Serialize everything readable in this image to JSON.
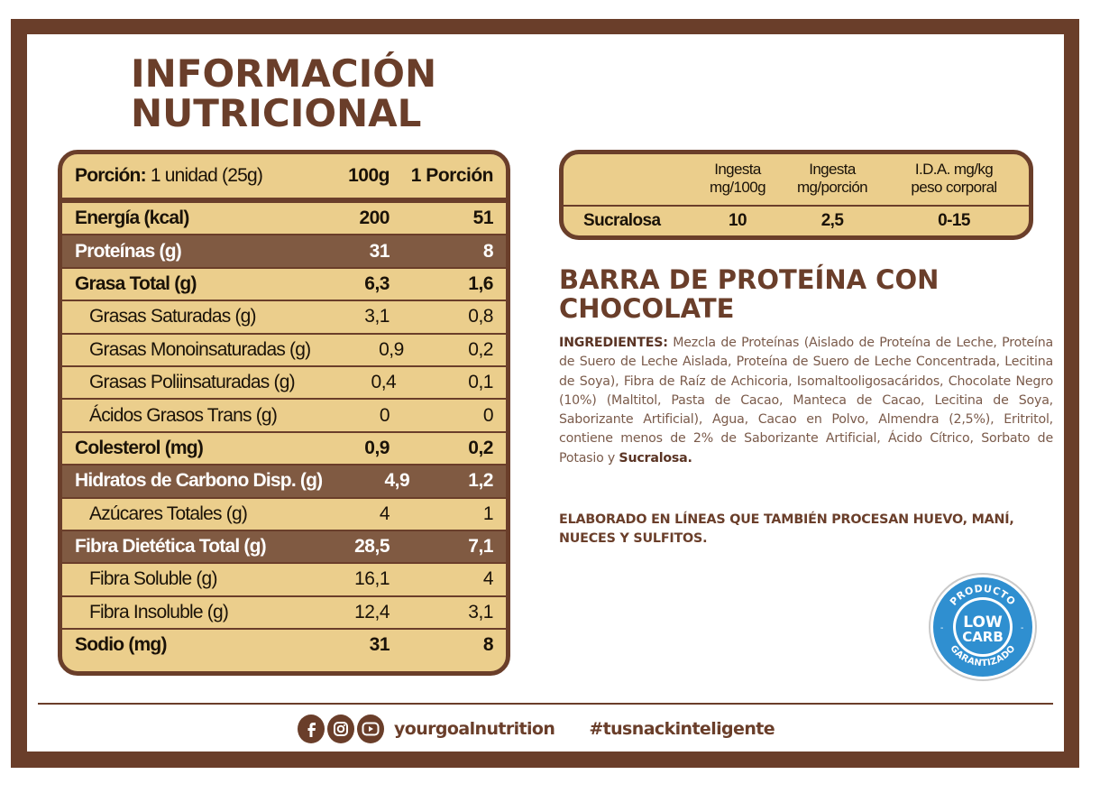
{
  "title": {
    "line1": "INFORMACIÓN",
    "line2": "NUTRICIONAL"
  },
  "nutrition_table": {
    "header": {
      "portion_label": "Porción:",
      "portion_value": "1 unidad (25g)",
      "col1": "100g",
      "col2": "1 Porción"
    },
    "rows": [
      {
        "label": "Energía (kcal)",
        "v100": "200",
        "vportion": "51",
        "style": "bold"
      },
      {
        "label": "Proteínas (g)",
        "v100": "31",
        "vportion": "8",
        "style": "dark"
      },
      {
        "label": "Grasa Total (g)",
        "v100": "6,3",
        "vportion": "1,6",
        "style": "bold"
      },
      {
        "label": "Grasas Saturadas (g)",
        "v100": "3,1",
        "vportion": "0,8",
        "style": "sub"
      },
      {
        "label": "Grasas Monoinsaturadas (g)",
        "v100": "0,9",
        "vportion": "0,2",
        "style": "sub"
      },
      {
        "label": "Grasas Poliinsaturadas (g)",
        "v100": "0,4",
        "vportion": "0,1",
        "style": "sub"
      },
      {
        "label": "Ácidos Grasos Trans (g)",
        "v100": "0",
        "vportion": "0",
        "style": "sub"
      },
      {
        "label": "Colesterol (mg)",
        "v100": "0,9",
        "vportion": "0,2",
        "style": "bold"
      },
      {
        "label": "Hidratos de Carbono Disp. (g)",
        "v100": "4,9",
        "vportion": "1,2",
        "style": "dark"
      },
      {
        "label": "Azúcares Totales (g)",
        "v100": "4",
        "vportion": "1",
        "style": "sub"
      },
      {
        "label": "Fibra Dietética Total (g)",
        "v100": "28,5",
        "vportion": "7,1",
        "style": "dark"
      },
      {
        "label": "Fibra Soluble (g)",
        "v100": "16,1",
        "vportion": "4",
        "style": "sub"
      },
      {
        "label": "Fibra Insoluble (g)",
        "v100": "12,4",
        "vportion": "3,1",
        "style": "sub"
      },
      {
        "label": "Sodio (mg)",
        "v100": "31",
        "vportion": "8",
        "style": "bold"
      }
    ]
  },
  "sweetener_table": {
    "headers": [
      {
        "line1": "Ingesta",
        "line2": "mg/100g"
      },
      {
        "line1": "Ingesta",
        "line2": "mg/porción"
      },
      {
        "line1": "I.D.A. mg/kg",
        "line2": "peso corporal"
      }
    ],
    "row": {
      "name": "Sucralosa",
      "mg100": "10",
      "mgportion": "2,5",
      "ida": "0-15"
    }
  },
  "product": {
    "title_line1": "BARRA DE PROTEÍNA CON",
    "title_line2": "CHOCOLATE",
    "ingredients_label": "INGREDIENTES:",
    "ingredients_text": "Mezcla de Proteínas (Aislado de Proteína de Leche, Proteína de Suero de Leche Aislada, Proteína de Suero de Leche Concentrada, Lecitina de Soya), Fibra de Raíz de Achicoria, Isomaltooligosacáridos, Chocolate Negro (10%) (Maltitol, Pasta de Cacao, Manteca de Cacao, Lecitina de Soya, Saborizante Artificial), Agua, Cacao en Polvo, Almendra (2,5%), Eritritol, contiene menos de 2% de Saborizante Artificial, Ácido Cítrico, Sorbato de Potasio y",
    "ingredients_end": "Sucralosa.",
    "warning": "ELABORADO EN LÍNEAS QUE TAMBIÉN PROCESAN HUEVO, MANÍ, NUECES Y SULFITOS."
  },
  "badge": {
    "top_text": "PRODUCTO",
    "line1": "LOW",
    "line2": "CARB",
    "bottom_text": "GARANTIZADO",
    "color": "#2f8fd0"
  },
  "footer": {
    "icons": [
      "facebook-icon",
      "instagram-icon",
      "youtube-icon"
    ],
    "handle": "yourgoalnutrition",
    "hashtag": "#tusnackinteligente"
  },
  "colors": {
    "brown": "#6a3e2a",
    "table_bg": "#ebce8c",
    "dark_row": "#805a42"
  }
}
